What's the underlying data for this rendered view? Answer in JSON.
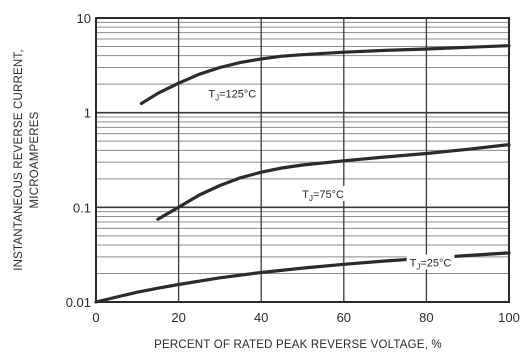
{
  "chart_data": {
    "type": "line",
    "title": "",
    "xlabel": "PERCENT OF RATED PEAK REVERSE VOLTAGE, %",
    "ylabel_lines": [
      "INSTANTANEOUS REVERSE CURRENT,",
      "MICROAMPERES"
    ],
    "xlim": [
      0,
      100
    ],
    "ylim": [
      0.01,
      10
    ],
    "yscale": "log",
    "grid": true,
    "xticks": [
      {
        "value": 0,
        "label": "0"
      },
      {
        "value": 20,
        "label": "20"
      },
      {
        "value": 40,
        "label": "40"
      },
      {
        "value": 60,
        "label": "60"
      },
      {
        "value": 80,
        "label": "80"
      },
      {
        "value": 100,
        "label": "100"
      }
    ],
    "yticks": [
      {
        "value": 0.01,
        "label": "0.01"
      },
      {
        "value": 0.1,
        "label": "0.1"
      },
      {
        "value": 1,
        "label": "1"
      },
      {
        "value": 10,
        "label": "10"
      }
    ],
    "series": [
      {
        "name": "TJ=125°C",
        "label_pre": "T",
        "label_sub": "J",
        "label_post": "=125°C",
        "label_at": {
          "x": 33,
          "y": 1.55
        },
        "x": [
          11,
          15,
          20,
          25,
          30,
          35,
          40,
          45,
          50,
          60,
          70,
          80,
          90,
          100
        ],
        "y": [
          1.25,
          1.6,
          2.05,
          2.55,
          3.0,
          3.4,
          3.7,
          3.95,
          4.1,
          4.35,
          4.55,
          4.7,
          4.9,
          5.1
        ]
      },
      {
        "name": "TJ=75°C",
        "label_pre": "T",
        "label_sub": "J",
        "label_post": "=75°C",
        "label_at": {
          "x": 55,
          "y": 0.135
        },
        "x": [
          15,
          20,
          25,
          30,
          35,
          40,
          45,
          50,
          60,
          70,
          80,
          90,
          100
        ],
        "y": [
          0.075,
          0.1,
          0.135,
          0.17,
          0.205,
          0.235,
          0.26,
          0.28,
          0.31,
          0.34,
          0.37,
          0.41,
          0.46
        ]
      },
      {
        "name": "TJ=25°C",
        "label_pre": "T",
        "label_sub": "J",
        "label_post": "=25°C",
        "label_at": {
          "x": 81,
          "y": 0.0255
        },
        "x": [
          0,
          5,
          10,
          15,
          20,
          30,
          40,
          50,
          60,
          70,
          80,
          90,
          100
        ],
        "y": [
          0.01,
          0.0113,
          0.0127,
          0.014,
          0.0153,
          0.018,
          0.0205,
          0.0228,
          0.025,
          0.0271,
          0.029,
          0.031,
          0.033
        ]
      }
    ]
  }
}
